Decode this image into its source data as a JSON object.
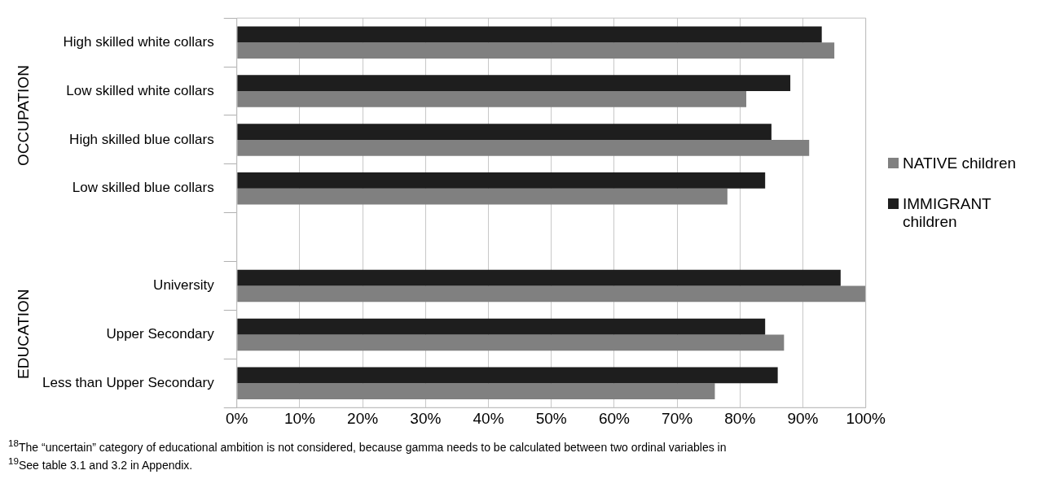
{
  "chart_data": {
    "type": "bar",
    "orientation": "horizontal",
    "categories": [
      "High skilled white collars",
      "Low skilled white collars",
      "High skilled blue collars",
      "Low skilled blue collars",
      null,
      "University",
      "Upper Secondary",
      "Less than Upper Secondary"
    ],
    "series": [
      {
        "name": "IMMIGRANT children",
        "color": "#1e1e1e",
        "values": [
          93,
          88,
          85,
          84,
          null,
          96,
          84,
          86
        ]
      },
      {
        "name": "NATIVE children",
        "color": "#808080",
        "values": [
          95,
          81,
          91,
          78,
          null,
          100,
          87,
          76
        ]
      }
    ],
    "xlim": [
      0,
      100
    ],
    "xticks": [
      {
        "value": 0,
        "label": "0%"
      },
      {
        "value": 10,
        "label": "10%"
      },
      {
        "value": 20,
        "label": "20%"
      },
      {
        "value": 30,
        "label": "30%"
      },
      {
        "value": 40,
        "label": "40%"
      },
      {
        "value": 50,
        "label": "50%"
      },
      {
        "value": 60,
        "label": "60%"
      },
      {
        "value": 70,
        "label": "70%"
      },
      {
        "value": 80,
        "label": "80%"
      },
      {
        "value": 90,
        "label": "90%"
      },
      {
        "value": 100,
        "label": "100%"
      }
    ],
    "grid": "x",
    "legend": "right",
    "annotations": [
      "OCCUPATION",
      "EDUCATION",
      "$^{18}$The “uncertain” category of educational ambition is not considered, because gamma needs to be calculated between two ordinal variables in",
      "$^{19}$See table 3.1 and 3.2 in Appendix."
    ]
  }
}
